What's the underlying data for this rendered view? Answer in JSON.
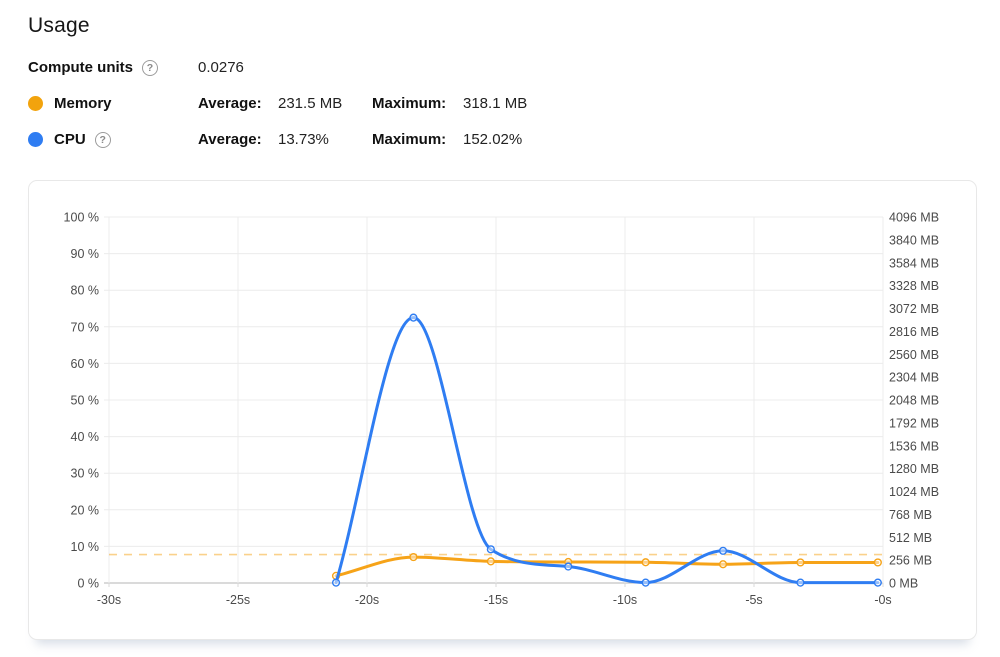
{
  "page": {
    "title": "Usage"
  },
  "stats": {
    "help_glyph": "?",
    "compute_units": {
      "label": "Compute units",
      "value": "0.0276"
    },
    "legend_rows": [
      {
        "name": "Memory",
        "dot_color": "#F2A30D",
        "avg_label": "Average:",
        "avg_value": "231.5 MB",
        "max_label": "Maximum:",
        "max_value": "318.1 MB"
      },
      {
        "name": "CPU",
        "dot_color": "#2F7DF2",
        "avg_label": "Average:",
        "avg_value": "13.73%",
        "max_label": "Maximum:",
        "max_value": "152.02%"
      }
    ]
  },
  "chart_data": {
    "type": "line",
    "x": [
      -21.2,
      -18.2,
      -15.2,
      -12.2,
      -9.2,
      -6.2,
      -3.2,
      -0.2
    ],
    "series": [
      {
        "name": "Memory",
        "axis": "right",
        "unit": "MB",
        "color": "#F6A318",
        "values": [
          80,
          290,
          242,
          235,
          232,
          210,
          230,
          230
        ]
      },
      {
        "name": "CPU",
        "axis": "left",
        "unit": "%",
        "color": "#2F7DF2",
        "values": [
          0.1,
          72.5,
          9.2,
          4.5,
          0.1,
          8.8,
          0.1,
          0.1
        ]
      }
    ],
    "left_axis": {
      "min": 0,
      "max": 100,
      "labels": [
        "100 %",
        "90 %",
        "80 %",
        "70 %",
        "60 %",
        "50 %",
        "40 %",
        "30 %",
        "20 %",
        "10 %",
        "0 %"
      ]
    },
    "right_axis": {
      "min": 0,
      "max": 4096,
      "labels": [
        "4096 MB",
        "3840 MB",
        "3584 MB",
        "3328 MB",
        "3072 MB",
        "2816 MB",
        "2560 MB",
        "2304 MB",
        "2048 MB",
        "1792 MB",
        "1536 MB",
        "1280 MB",
        "1024 MB",
        "768 MB",
        "512 MB",
        "256 MB",
        "0 MB"
      ]
    },
    "x_axis": {
      "min": -30,
      "max": 0,
      "ticks": [
        -30,
        -25,
        -20,
        -15,
        -10,
        -5,
        0
      ],
      "labels": [
        "-30s",
        "-25s",
        "-20s",
        "-15s",
        "-10s",
        "-5s",
        "-0s"
      ]
    },
    "dashed_line": {
      "series": "Memory",
      "stat": "maximum",
      "value_mb": 318.1,
      "color": "rgba(246, 163, 24, 0.5)"
    },
    "grid": true,
    "legend_position": "none",
    "colors": {
      "grid": "#ececec",
      "zero_axis": "#b5b5b5",
      "tick_stub": "#d8d8d8"
    }
  }
}
